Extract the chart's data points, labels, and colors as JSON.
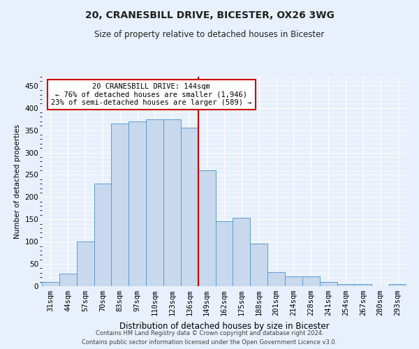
{
  "title1": "20, CRANESBILL DRIVE, BICESTER, OX26 3WG",
  "title2": "Size of property relative to detached houses in Bicester",
  "xlabel": "Distribution of detached houses by size in Bicester",
  "ylabel": "Number of detached properties",
  "bar_labels": [
    "31sqm",
    "44sqm",
    "57sqm",
    "70sqm",
    "83sqm",
    "97sqm",
    "110sqm",
    "123sqm",
    "136sqm",
    "149sqm",
    "162sqm",
    "175sqm",
    "188sqm",
    "201sqm",
    "214sqm",
    "228sqm",
    "241sqm",
    "254sqm",
    "267sqm",
    "280sqm",
    "293sqm"
  ],
  "bar_values": [
    10,
    28,
    100,
    230,
    365,
    370,
    375,
    375,
    355,
    260,
    145,
    153,
    95,
    32,
    22,
    22,
    10,
    4,
    4,
    0,
    4
  ],
  "bar_color": "#c8d9ed",
  "bar_edge_color": "#5b9bd5",
  "vline_x_idx": 8,
  "annotation_title": "20 CRANESBILL DRIVE: 144sqm",
  "annotation_line1": "← 76% of detached houses are smaller (1,946)",
  "annotation_line2": "23% of semi-detached houses are larger (589) →",
  "annotation_box_color": "#ffffff",
  "annotation_box_edge": "#cc0000",
  "vline_color": "#cc0000",
  "ylim": [
    0,
    470
  ],
  "yticks": [
    0,
    50,
    100,
    150,
    200,
    250,
    300,
    350,
    400,
    450
  ],
  "footer1": "Contains HM Land Registry data © Crown copyright and database right 2024.",
  "footer2": "Contains public sector information licensed under the Open Government Licence v3.0.",
  "bg_color": "#e8f0fb",
  "grid_color": "#ffffff",
  "title1_fontsize": 10,
  "title2_fontsize": 8.5,
  "xlabel_fontsize": 8.5,
  "ylabel_fontsize": 7.5,
  "tick_fontsize": 7.5,
  "annot_fontsize": 7.5,
  "footer_fontsize": 6.0
}
